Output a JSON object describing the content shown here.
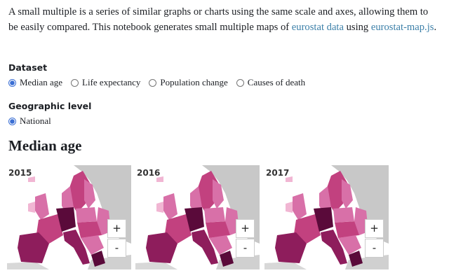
{
  "intro": {
    "text1": "A small multiple is a series of similar graphs or charts using the same scale and axes, allowing them to be easily compared. This notebook generates small multiple maps of ",
    "link1": "eurostat data",
    "text2": " using ",
    "link2": "eurostat-map.js",
    "text3": "."
  },
  "dataset": {
    "label": "Dataset",
    "options": [
      "Median age",
      "Life expectancy",
      "Population change",
      "Causes of death"
    ],
    "selected": 0
  },
  "geographic_level": {
    "label": "Geographic level",
    "options": [
      "National"
    ],
    "selected": 0
  },
  "heading": "Median age",
  "maps": [
    {
      "year": "2015"
    },
    {
      "year": "2016"
    },
    {
      "year": "2017"
    }
  ],
  "zoom_controls": [
    "+",
    "-"
  ]
}
